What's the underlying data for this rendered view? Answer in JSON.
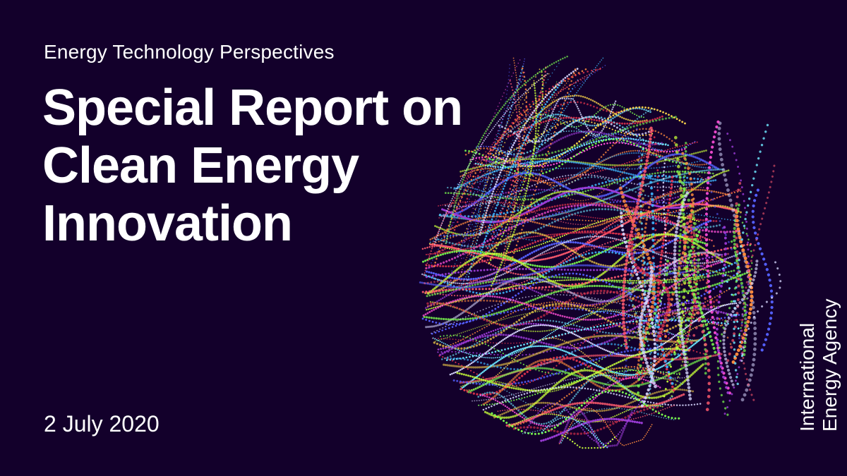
{
  "slide": {
    "series_label": "Energy Technology Perspectives",
    "title_lines": [
      "Special Report on",
      "Clean Energy",
      "Innovation"
    ],
    "date": "2 July 2020",
    "organization_lines": [
      "International",
      "Energy Agency"
    ]
  },
  "colors": {
    "background": "#13002b",
    "text": "#ffffff",
    "art_palette": [
      "#e8354d",
      "#ff5a6e",
      "#9b3bd6",
      "#5560ff",
      "#3fb8ff",
      "#6ee7ff",
      "#7bff4f",
      "#c8ff3a",
      "#ffd84a",
      "#ff8a3d",
      "#ff4fd8",
      "#d7d7ff"
    ]
  },
  "artwork": {
    "icon": "dotted-swirl-globe-icon"
  }
}
